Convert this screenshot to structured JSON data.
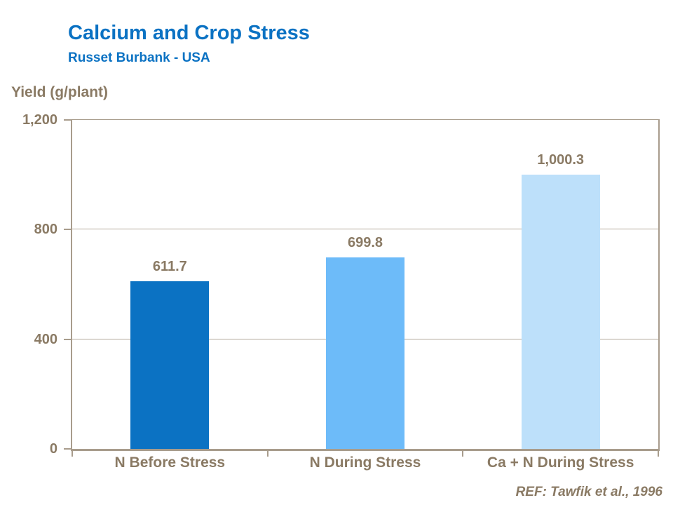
{
  "header": {
    "title": "Calcium and Crop Stress",
    "subtitle": "Russet Burbank - USA"
  },
  "chart_data": {
    "type": "bar",
    "title": "Calcium and Crop Stress",
    "subtitle": "Russet Burbank - USA",
    "ylabel": "Yield (g/plant)",
    "xlabel": "",
    "ylim": [
      0,
      1200
    ],
    "yticks": [
      0,
      400,
      800,
      1200
    ],
    "ytick_labels": [
      "0",
      "400",
      "800",
      "1,200"
    ],
    "gridlines": [
      400,
      800
    ],
    "grid": "horizontal",
    "legend_position": "none",
    "categories": [
      "N Before Stress",
      "N During Stress",
      "Ca + N During Stress"
    ],
    "values": [
      611.7,
      699.8,
      1000.3
    ],
    "value_labels": [
      "611.7",
      "699.8",
      "1,000.3"
    ],
    "bar_colors": [
      "#0B72C3",
      "#6DBBF9",
      "#BDE0FA"
    ],
    "reference": "REF: Tawfik et al., 1996"
  },
  "footer": {
    "reference": "REF: Tawfik et al., 1996"
  },
  "colors": {
    "title_blue": "#0B72C3",
    "text_taupe": "#8A7A64",
    "axis_line": "#A89C8C",
    "gridline": "#B3A89A",
    "background": "#FFFFFF"
  }
}
